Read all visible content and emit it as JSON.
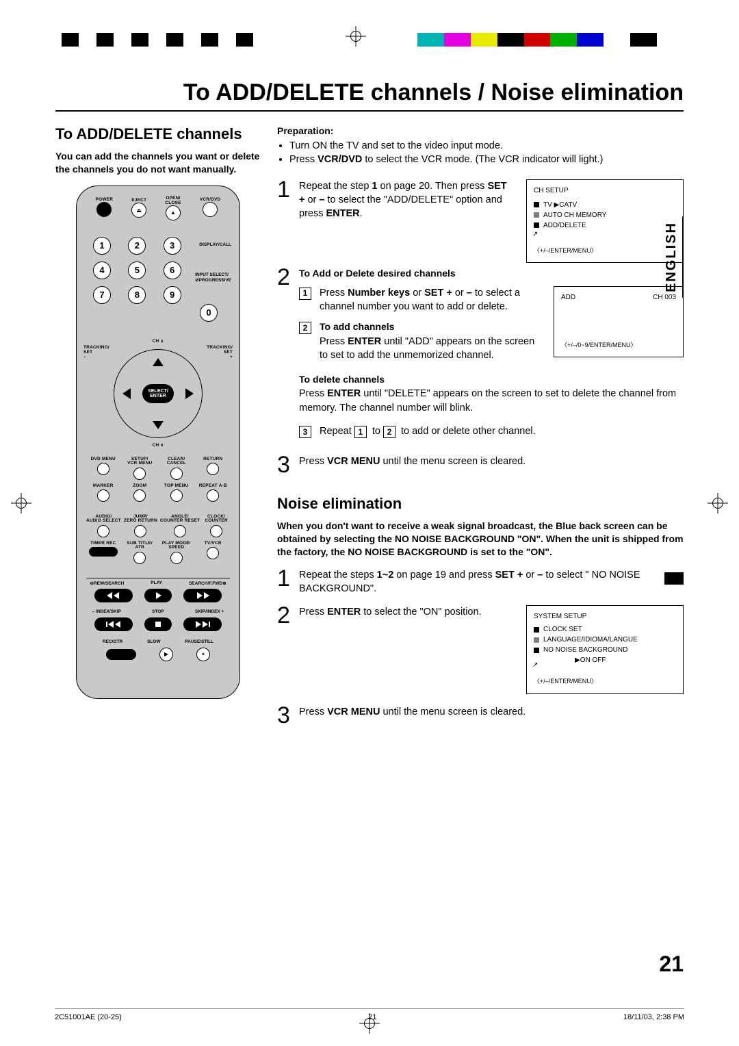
{
  "regmarks": {
    "bw": [
      "#000",
      "#fff",
      "#000",
      "#fff",
      "#000",
      "#fff",
      "#000",
      "#fff",
      "#000",
      "#fff",
      "#000"
    ],
    "colors": [
      "#00b3b3",
      "#e000e0",
      "#e8e800",
      "#000000",
      "#d00000",
      "#00b000",
      "#0000d0",
      "#ffffff",
      "#000000"
    ]
  },
  "main_title": "To ADD/DELETE channels / Noise elimination",
  "side_tab": "ENGLISH",
  "page_num": "21",
  "section1": {
    "title": "To ADD/DELETE channels",
    "intro": "You can add the channels you want or delete the channels you do not want manually."
  },
  "remote": {
    "top_row": [
      "POWER",
      "EJECT",
      "OPEN/\nCLOSE",
      "VCR/DVD"
    ],
    "numbers": [
      "1",
      "2",
      "3",
      "4",
      "5",
      "6",
      "7",
      "8",
      "9",
      "0"
    ],
    "right_labels": [
      "DISPLAY/CALL",
      "INPUT SELECT/\n⊘PROGRESSIVE"
    ],
    "ch_up": "CH ∧",
    "ch_down": "CH ∨",
    "tracking_l": "TRACKING/\nSET\n–",
    "tracking_r": "TRACKING/\nSET\n+",
    "center": "SELECT/\nENTER",
    "grid1": [
      [
        "DVD MENU",
        "SETUP/\nVCR MENU",
        "CLEAR/\nCANCEL",
        "RETURN"
      ],
      [
        "MARKER",
        "ZOOM",
        "TOP MENU",
        "REPEAT A-B"
      ]
    ],
    "grid2": [
      [
        "AUDIO/\nAUDIO SELECT",
        "JUMP/\nZERO RETURN",
        "ANGLE/\nCOUNTER RESET",
        "CLOCK/\nCOUNTER"
      ],
      [
        "TIMER REC",
        "SUB TITLE/\nATR",
        "PLAY MODE/\nSPEED",
        "TV/VCR"
      ]
    ],
    "transport_top": [
      "⊖REW/SEARCH",
      "PLAY",
      "SEARCH/F.FWD⊕"
    ],
    "transport_mid": [
      "– INDEX/SKIP",
      "STOP",
      "SKIP/INDEX +"
    ],
    "transport_bot": [
      "REC/OTR",
      "SLOW",
      "PAUSE/STILL"
    ]
  },
  "prep": {
    "heading": "Preparation:",
    "items": [
      "Turn ON the TV and set to the video input mode.",
      "Press <b>VCR/DVD</b> to select the VCR mode. (The VCR indicator will light.)"
    ]
  },
  "step1": {
    "text": "Repeat the step <b>1</b> on page 20. Then press <b>SET +</b> or <b>–</b> to select the \"ADD/DELETE\" option and press <b>ENTER</b>.",
    "tv": {
      "title": "CH SETUP",
      "lines": [
        "TV ▶CATV",
        "AUTO CH MEMORY",
        "ADD/DELETE"
      ],
      "foot": "〈+/–/ENTER/MENU〉"
    }
  },
  "step2": {
    "heading": "To Add or Delete desired channels",
    "sub1": "Press <b>Number keys</b> or <b>SET +</b> or <b>–</b> to select a channel number you want to add or delete.",
    "sub2_h": "To add channels",
    "sub2": "Press <b>ENTER</b> until \"ADD\" appears on the screen to set to add the unmemorized channel.",
    "del_h": "To delete channels",
    "del": "Press <b>ENTER</b> until \"DELETE\" appears on the screen to set to delete the channel from memory. The channel number will blink.",
    "sub3": "Repeat <span class='boxed-num'>1</span> to <span class='boxed-num'>2</span> to add or delete other channel.",
    "tv": {
      "left": "ADD",
      "right": "CH  003",
      "foot": "〈+/–/0~9/ENTER/MENU〉"
    }
  },
  "step3": "Press <b>VCR MENU</b> until the menu screen is cleared.",
  "section2": {
    "title": "Noise elimination",
    "intro": "When you don't want to receive a weak signal broadcast, the Blue back screen can be obtained by selecting the NO NOISE BACKGROUND \"ON\". When the unit is shipped from the factory, the NO NOISE BACKGROUND is set to the \"ON\".",
    "s1": "Repeat the steps <b>1~2</b> on page 19 and press <b>SET +</b> or <b>–</b> to select \" NO NOISE BACKGROUND\".",
    "s2": "Press <b>ENTER</b> to select the \"ON\" position.",
    "tv": {
      "title": "SYSTEM SETUP",
      "lines": [
        "CLOCK SET",
        "LANGUAGE/IDIOMA/LANGUE",
        "NO NOISE BACKGROUND"
      ],
      "opts": "▶ON   OFF",
      "foot": "〈+/–/ENTER/MENU〉"
    },
    "s3": "Press <b>VCR MENU</b> until the menu screen is cleared."
  },
  "footer": {
    "left": "2C51001AE (20-25)",
    "mid": "21",
    "right": "18/11/03, 2:38 PM"
  }
}
